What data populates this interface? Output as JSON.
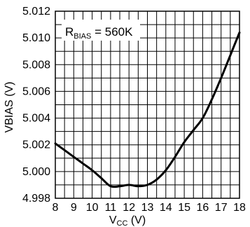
{
  "chart_data": {
    "type": "line",
    "xlabel_main": "V",
    "xlabel_sub": "CC",
    "xlabel_unit": " (V)",
    "ylabel": "VBIAS (V)",
    "annotation": {
      "main": "R",
      "sub": "BIAS",
      "rest": " = 560K"
    },
    "xlim": [
      8,
      18
    ],
    "ylim": [
      4.998,
      5.012
    ],
    "x_ticks": [
      8,
      9,
      10,
      11,
      12,
      13,
      14,
      15,
      16,
      17,
      18
    ],
    "x_tick_labels": [
      "8",
      "9",
      "10",
      "11",
      "12",
      "13",
      "14",
      "15",
      "16",
      "17",
      "18"
    ],
    "y_ticks": [
      4.998,
      5.0,
      5.002,
      5.004,
      5.006,
      5.008,
      5.01,
      5.012
    ],
    "y_tick_labels": [
      "4.998",
      "5.000",
      "5.002",
      "5.004",
      "5.006",
      "5.008",
      "5.010",
      "5.012"
    ],
    "x_minor_step": 0.5,
    "y_minor_step": 0.001,
    "grid": true,
    "series": [
      {
        "x": [
          8.0,
          8.5,
          9.0,
          9.5,
          10.0,
          10.5,
          11.0,
          11.5,
          12.0,
          12.5,
          13.0,
          13.5,
          14.0,
          14.5,
          15.0,
          15.5,
          16.0,
          16.5,
          17.0,
          17.5,
          18.0
        ],
        "values": [
          5.0021,
          5.0016,
          5.0011,
          5.0006,
          5.0001,
          4.9995,
          4.9989,
          4.9989,
          4.999,
          4.9989,
          4.999,
          4.9994,
          5.0001,
          5.0011,
          5.0022,
          5.0031,
          5.004,
          5.0054,
          5.007,
          5.0087,
          5.0104
        ]
      }
    ]
  }
}
